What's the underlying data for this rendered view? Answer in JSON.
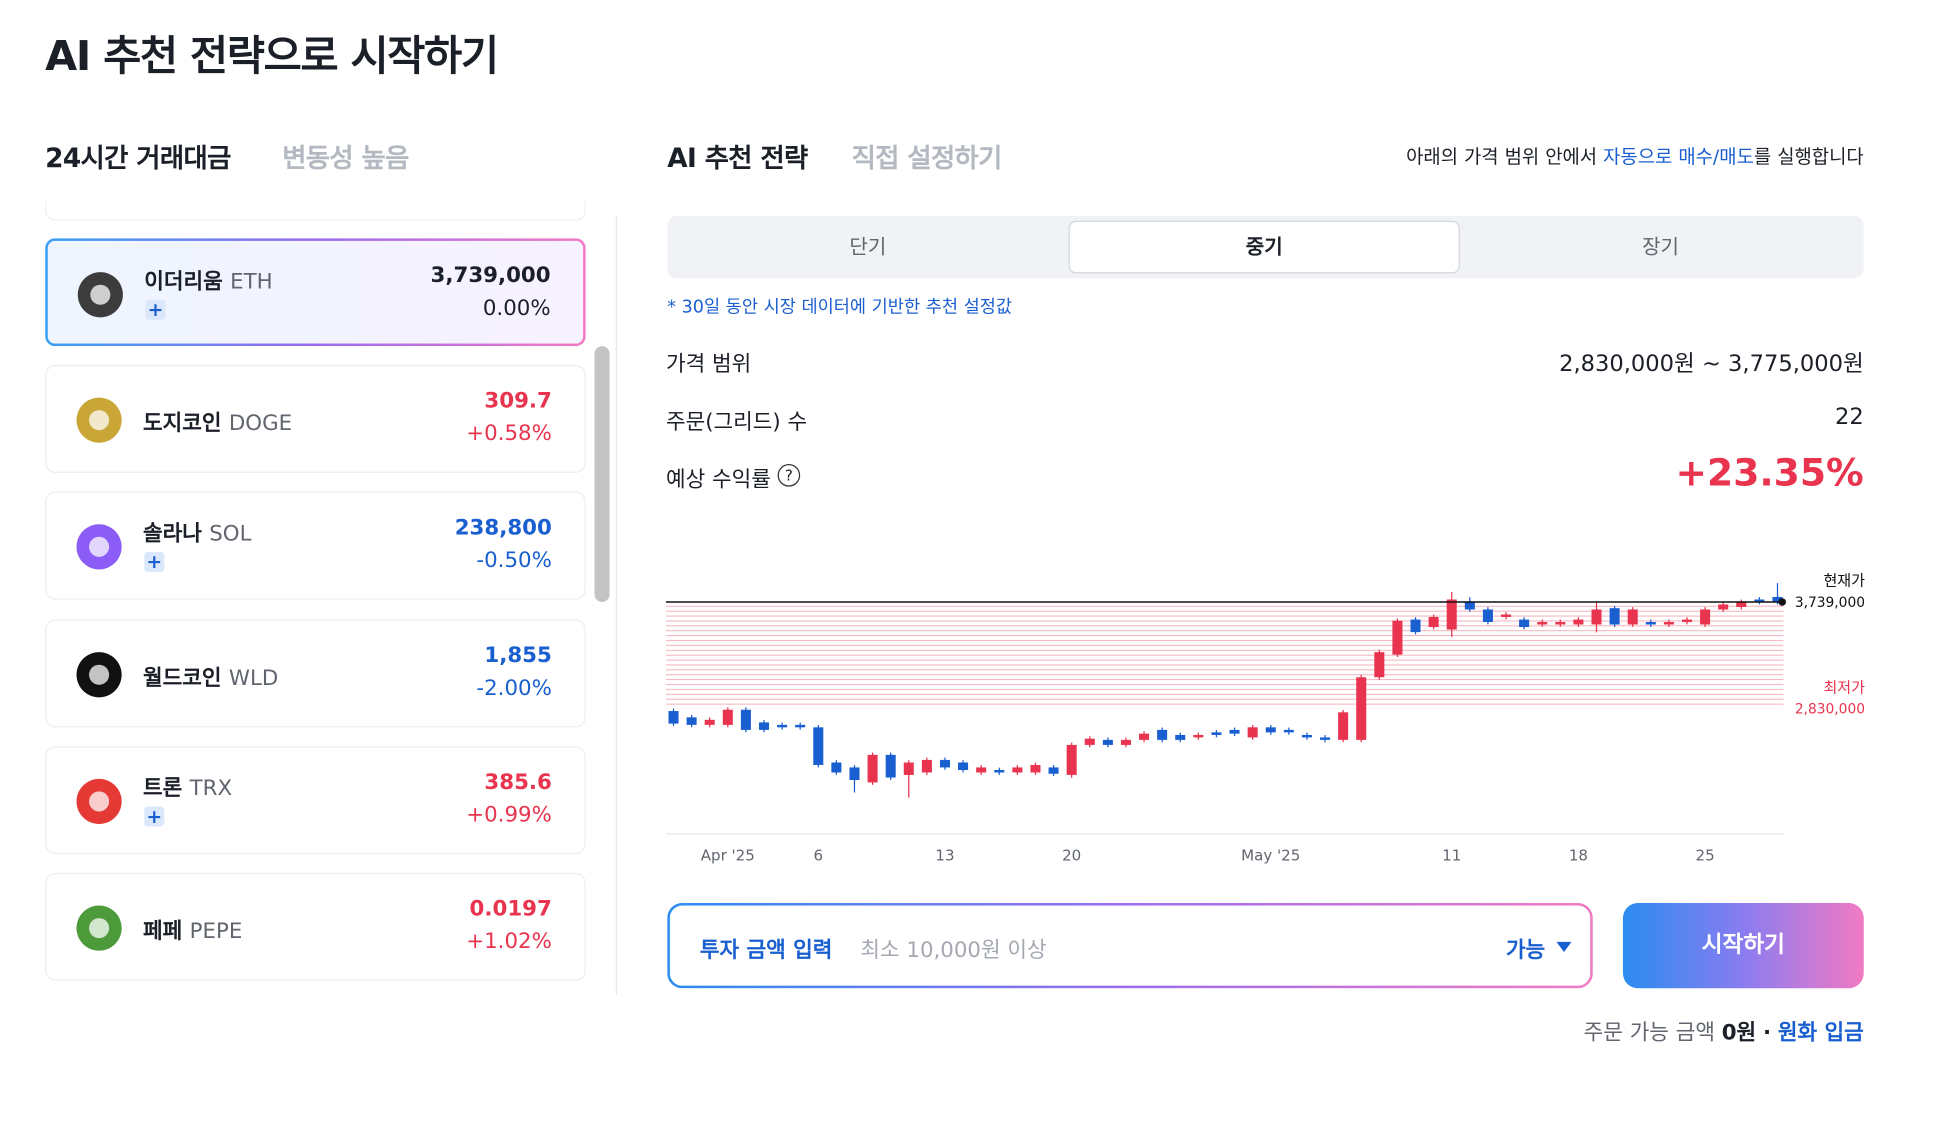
{
  "title": "AI 추천 전략으로 시작하기",
  "left_tabs": [
    "24시간 거래대금",
    "변동성 높음"
  ],
  "coins": [
    {
      "name": "이더리움",
      "symbol": "ETH",
      "price": "3,739,000",
      "change": "0.00%",
      "color": "#1b1f27",
      "badge": true,
      "icon": "#3c3c3d",
      "selected": true
    },
    {
      "name": "도지코인",
      "symbol": "DOGE",
      "price": "309.7",
      "change": "+0.58%",
      "color": "#e8344e",
      "badge": false,
      "icon": "#c9a635",
      "selected": false
    },
    {
      "name": "솔라나",
      "symbol": "SOL",
      "price": "238,800",
      "change": "-0.50%",
      "color": "#1a5fd0",
      "badge": true,
      "icon": "#8b5cf6",
      "selected": false
    },
    {
      "name": "월드코인",
      "symbol": "WLD",
      "price": "1,855",
      "change": "-2.00%",
      "color": "#1a5fd0",
      "badge": false,
      "icon": "#111111",
      "selected": false
    },
    {
      "name": "트론",
      "symbol": "TRX",
      "price": "385.6",
      "change": "+0.99%",
      "color": "#e8344e",
      "badge": true,
      "icon": "#e53935",
      "selected": false
    },
    {
      "name": "페페",
      "symbol": "PEPE",
      "price": "0.0197",
      "change": "+1.02%",
      "color": "#e8344e",
      "badge": false,
      "icon": "#4c9a3a",
      "selected": false
    }
  ],
  "right_tabs": [
    "AI 추천 전략",
    "직접 설정하기"
  ],
  "notice": {
    "before": "아래의 가격 범위 안에서 ",
    "link": "자동으로 매수/매도",
    "after": "를 실행합니다"
  },
  "periods": [
    "단기",
    "중기",
    "장기"
  ],
  "selected_period": 1,
  "note": "* 30일 동안 시장 데이터에 기반한 추천 설정값",
  "rows": [
    {
      "label": "가격 범위",
      "value": "2,830,000원 ~ 3,775,000원"
    },
    {
      "label": "주문(그리드) 수",
      "value": "22"
    },
    {
      "label": "예상 수익률",
      "value": "+23.35%"
    }
  ],
  "chart_data": {
    "type": "candlestick",
    "up_color": "#e8344e",
    "down_color": "#1a5fd0",
    "categories": [
      null,
      null,
      null,
      "Apr '25",
      null,
      null,
      null,
      null,
      "6",
      null,
      null,
      null,
      null,
      null,
      null,
      "13",
      null,
      null,
      null,
      null,
      null,
      null,
      "20",
      null,
      null,
      null,
      null,
      null,
      null,
      null,
      null,
      null,
      null,
      "May '25",
      null,
      null,
      null,
      null,
      null,
      null,
      null,
      null,
      null,
      "11",
      null,
      null,
      null,
      null,
      null,
      null,
      "18",
      null,
      null,
      null,
      null,
      null,
      null,
      "25",
      null,
      null,
      null,
      null
    ],
    "open": [
      2809000,
      2755000,
      2691000,
      2691000,
      2820000,
      2712000,
      2691000,
      2691000,
      2670000,
      2370000,
      2328000,
      2200000,
      2435000,
      2264000,
      2285000,
      2392000,
      2370000,
      2285000,
      2306000,
      2285000,
      2285000,
      2328000,
      2264000,
      2520000,
      2563000,
      2520000,
      2563000,
      2648000,
      2605000,
      2584000,
      2627000,
      2648000,
      2584000,
      2670000,
      2648000,
      2605000,
      2584000,
      2563000,
      2563000,
      3097000,
      3290000,
      3589000,
      3525000,
      3504000,
      3739000,
      3675000,
      3611000,
      3589000,
      3547000,
      3547000,
      3547000,
      3547000,
      3686000,
      3547000,
      3568000,
      3547000,
      3568000,
      3547000,
      3675000,
      3696000,
      3760000,
      3782000
    ],
    "high": [
      2829000,
      2775000,
      2754000,
      2840000,
      2840000,
      2732000,
      2711000,
      2711000,
      2690000,
      2390000,
      2348000,
      2455000,
      2455000,
      2390000,
      2412000,
      2412000,
      2390000,
      2348000,
      2326000,
      2348000,
      2369000,
      2348000,
      2540000,
      2593000,
      2583000,
      2583000,
      2636000,
      2668000,
      2625000,
      2625000,
      2647000,
      2668000,
      2690000,
      2690000,
      2668000,
      2625000,
      2604000,
      2818000,
      3117000,
      3331000,
      3599000,
      3609000,
      3631000,
      3825000,
      3780000,
      3695000,
      3652000,
      3609000,
      3588000,
      3588000,
      3609000,
      3740000,
      3706000,
      3695000,
      3588000,
      3588000,
      3609000,
      3695000,
      3738000,
      3759000,
      3780000,
      3900000
    ],
    "low": [
      2682000,
      2671000,
      2671000,
      2671000,
      2628000,
      2628000,
      2650000,
      2650000,
      2329000,
      2265000,
      2114000,
      2180000,
      2222000,
      2071000,
      2265000,
      2308000,
      2286000,
      2265000,
      2265000,
      2265000,
      2265000,
      2254000,
      2240000,
      2500000,
      2500000,
      2500000,
      2543000,
      2543000,
      2543000,
      2564000,
      2585000,
      2596000,
      2564000,
      2607000,
      2607000,
      2564000,
      2543000,
      2543000,
      2543000,
      3077000,
      3270000,
      3462000,
      3505000,
      3440000,
      3655000,
      3548000,
      3591000,
      3505000,
      3527000,
      3527000,
      3527000,
      3480000,
      3527000,
      3527000,
      3527000,
      3527000,
      3548000,
      3527000,
      3655000,
      3676000,
      3719000,
      3719000
    ],
    "close": [
      2702000,
      2691000,
      2734000,
      2820000,
      2648000,
      2648000,
      2670000,
      2670000,
      2349000,
      2285000,
      2221000,
      2435000,
      2242000,
      2370000,
      2392000,
      2328000,
      2306000,
      2328000,
      2285000,
      2328000,
      2349000,
      2274000,
      2520000,
      2573000,
      2520000,
      2563000,
      2616000,
      2563000,
      2563000,
      2605000,
      2605000,
      2616000,
      2670000,
      2627000,
      2627000,
      2584000,
      2563000,
      2798000,
      3097000,
      3311000,
      3579000,
      3482000,
      3611000,
      3760000,
      3675000,
      3568000,
      3632000,
      3525000,
      3568000,
      3568000,
      3589000,
      3675000,
      3547000,
      3675000,
      3547000,
      3568000,
      3589000,
      3675000,
      3718000,
      3739000,
      3739000,
      3739000
    ],
    "ylim": [
      1760000,
      4006000
    ],
    "current_price": {
      "name": "현재가",
      "value": 3739000,
      "label": "3,739,000",
      "color": "#111111"
    },
    "min_price": {
      "name": "최저가",
      "value": 2830000,
      "label": "2,830,000",
      "color": "#e8344e"
    }
  },
  "input": {
    "label": "투자 금액 입력",
    "placeholder": "최소 10,000원 이상",
    "available": "가능"
  },
  "button": "시작하기",
  "footer": {
    "label": "주문 가능 금액",
    "amount": "0원",
    "separator": "·",
    "deposit": "원화 입금"
  }
}
